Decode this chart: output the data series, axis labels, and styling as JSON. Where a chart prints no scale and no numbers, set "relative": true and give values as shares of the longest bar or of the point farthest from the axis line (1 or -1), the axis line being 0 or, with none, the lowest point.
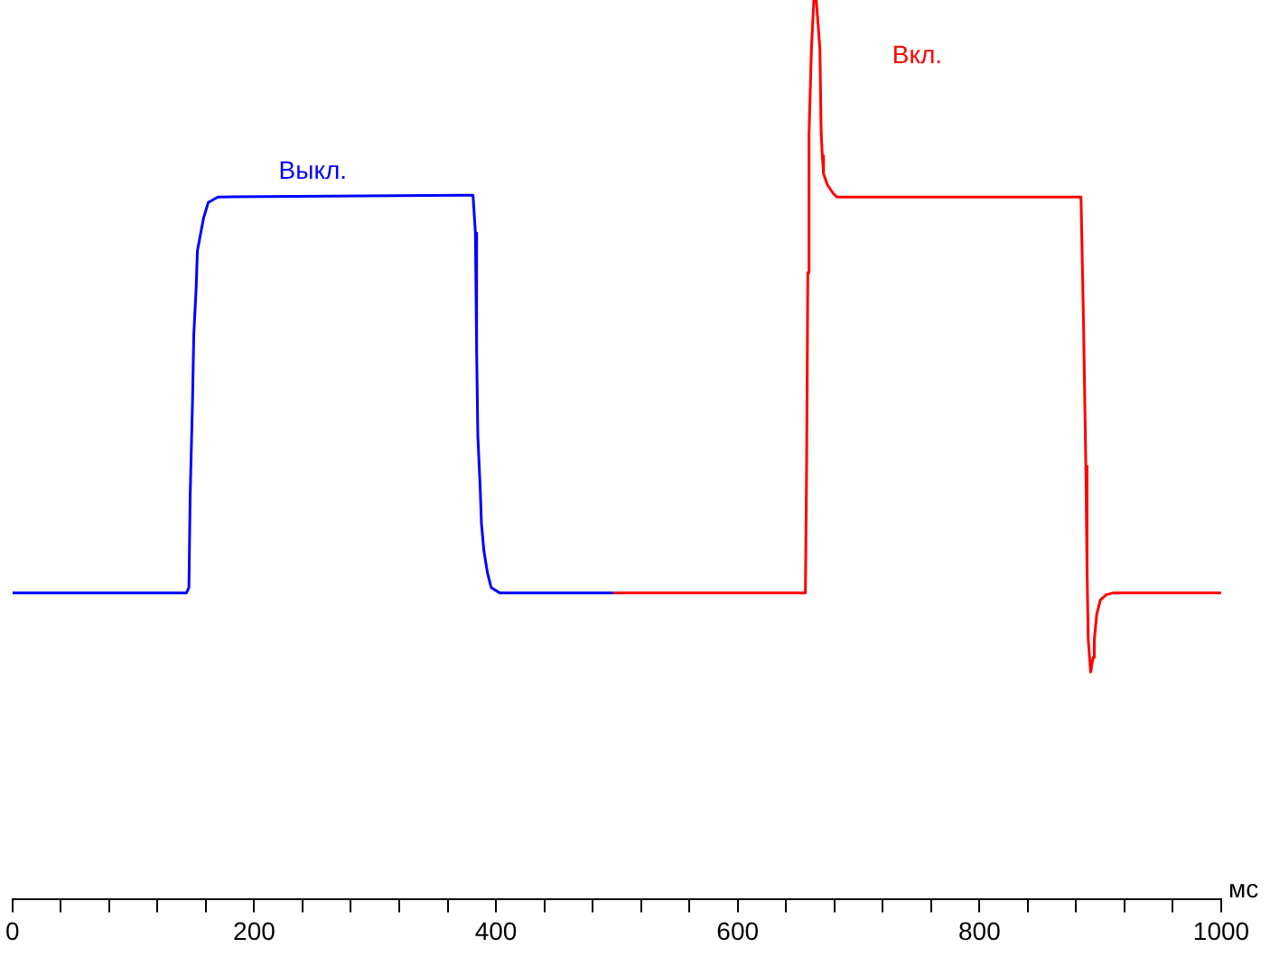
{
  "chart_data": {
    "type": "line",
    "relative": true,
    "xlabel": "мс",
    "xlim": [
      0,
      1000
    ],
    "xticks": [
      0,
      {
        "value": 40,
        "label": null
      },
      {
        "value": 80,
        "label": null
      },
      {
        "value": 120,
        "label": null
      },
      {
        "value": 160,
        "label": null
      },
      200,
      {
        "value": 240,
        "label": null
      },
      {
        "value": 280,
        "label": null
      },
      {
        "value": 320,
        "label": null
      },
      {
        "value": 360,
        "label": null
      },
      400,
      {
        "value": 440,
        "label": null
      },
      {
        "value": 480,
        "label": null
      },
      {
        "value": 520,
        "label": null
      },
      {
        "value": 560,
        "label": null
      },
      600,
      {
        "value": 640,
        "label": null
      },
      {
        "value": 680,
        "label": null
      },
      {
        "value": 720,
        "label": null
      },
      {
        "value": 760,
        "label": null
      },
      800,
      {
        "value": 840,
        "label": null
      },
      {
        "value": 880,
        "label": null
      },
      {
        "value": 920,
        "label": null
      },
      {
        "value": 960,
        "label": null
      },
      1000
    ],
    "grid": false,
    "legend": false,
    "marker": "none",
    "line_style": "solid",
    "series": [
      {
        "name": "Выкл.",
        "color": "#0000ff",
        "x": [
          0,
          144,
          146,
          147,
          149,
          150,
          152,
          153,
          158,
          162,
          170,
          381,
          383,
          384,
          385,
          387,
          388,
          390,
          393,
          396,
          403,
          497
        ],
        "values": [
          0.341,
          0.341,
          0.347,
          0.448,
          0.556,
          0.627,
          0.681,
          0.721,
          0.757,
          0.775,
          0.781,
          0.783,
          0.741,
          0.612,
          0.516,
          0.456,
          0.418,
          0.388,
          0.363,
          0.347,
          0.341,
          0.341
        ]
      },
      {
        "name": "Вкл.",
        "color": "#ff0000",
        "x": [
          497,
          656,
          657,
          658,
          659,
          661,
          663,
          665,
          668,
          669,
          670,
          671,
          674,
          679,
          682,
          884,
          886,
          888,
          889,
          890,
          892,
          894,
          895,
          897,
          900,
          905,
          911,
          1000
        ],
        "values": [
          0.341,
          0.341,
          0.482,
          0.697,
          0.851,
          0.946,
          1,
          1,
          0.946,
          0.854,
          0.827,
          0.807,
          0.795,
          0.785,
          0.781,
          0.781,
          0.647,
          0.482,
          0.367,
          0.289,
          0.253,
          0.269,
          0.289,
          0.317,
          0.333,
          0.339,
          0.341,
          0.341
        ]
      }
    ]
  }
}
